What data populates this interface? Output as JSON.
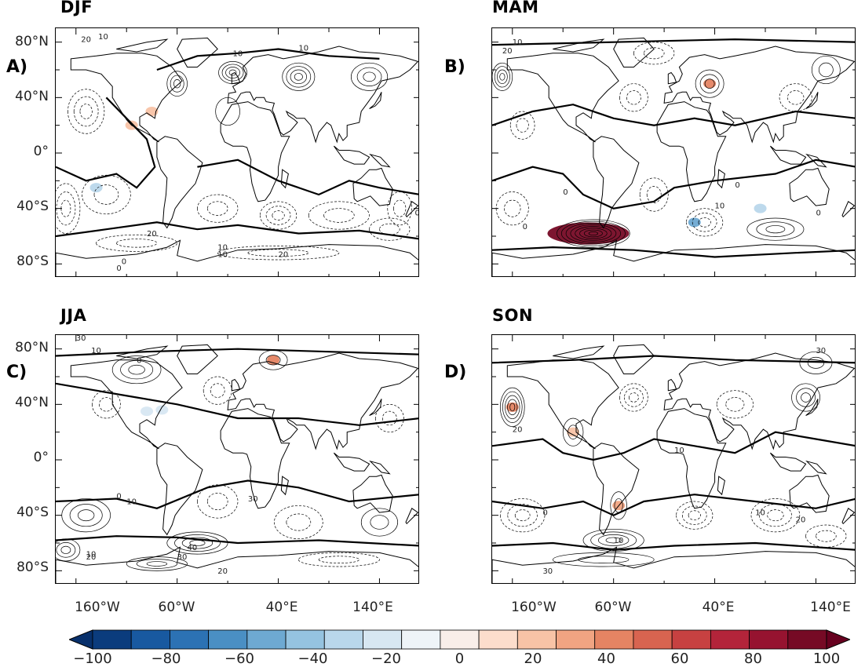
{
  "panels": [
    {
      "id": "A",
      "season": "DJF",
      "label": "A)"
    },
    {
      "id": "B",
      "season": "MAM",
      "label": "B)"
    },
    {
      "id": "C",
      "season": "JJA",
      "label": "C)"
    },
    {
      "id": "D",
      "season": "SON",
      "label": "D)"
    }
  ],
  "lat_ticks": [
    "80°N",
    "40°N",
    "0°",
    "40°S",
    "80°S"
  ],
  "lon_ticks": [
    "160°W",
    "60°W",
    "40°E",
    "140°E"
  ],
  "contour_labels": {
    "A": [
      "20",
      "10",
      "10",
      "10",
      "0",
      "20",
      "0",
      "10",
      "20",
      "10",
      "0"
    ],
    "B": [
      "20",
      "10",
      "0",
      "0",
      "10",
      "0",
      "0"
    ],
    "C": [
      "30",
      "10",
      "0",
      "0",
      "10",
      "30",
      "10",
      "20",
      "40",
      "30",
      "20"
    ],
    "D": [
      "30",
      "20",
      "0",
      "10",
      "10",
      "20",
      "10",
      "30"
    ]
  },
  "colorbar": {
    "min": -100,
    "max": 100,
    "step": 10,
    "labels": [
      "−100",
      "−80",
      "−60",
      "−40",
      "−20",
      "0",
      "20",
      "40",
      "60",
      "80",
      "100"
    ],
    "colors": [
      "#0b3c7d",
      "#1859a0",
      "#2c72b4",
      "#4a8fc4",
      "#6ea9d2",
      "#95c3e0",
      "#b9d7eb",
      "#d7e7f2",
      "#eef4f8",
      "#f9eee9",
      "#fcddcc",
      "#f8c3a6",
      "#f1a482",
      "#e58463",
      "#d86450",
      "#c74141",
      "#b3243a",
      "#961330",
      "#760a25"
    ],
    "under_color": "#08306b",
    "over_color": "#67001f"
  },
  "shading": {
    "A": [
      {
        "lon": -85,
        "lat": 30,
        "value": 20
      },
      {
        "lon": -105,
        "lat": 20,
        "value": 20
      },
      {
        "lon": -140,
        "lat": -25,
        "value": -30
      }
    ],
    "B": [
      {
        "lon": -85,
        "lat": -58,
        "value": 90
      },
      {
        "lon": 35,
        "lat": 50,
        "value": 40
      },
      {
        "lon": 20,
        "lat": -50,
        "value": -50
      },
      {
        "lon": 85,
        "lat": -40,
        "value": -30
      }
    ],
    "C": [
      {
        "lon": 35,
        "lat": 72,
        "value": 40
      },
      {
        "lon": -90,
        "lat": 35,
        "value": -20
      },
      {
        "lon": -75,
        "lat": 36,
        "value": -20
      }
    ],
    "D": [
      {
        "lon": -160,
        "lat": 38,
        "value": 40
      },
      {
        "lon": -100,
        "lat": 20,
        "value": 20
      },
      {
        "lon": -55,
        "lat": -33,
        "value": 30
      }
    ]
  }
}
